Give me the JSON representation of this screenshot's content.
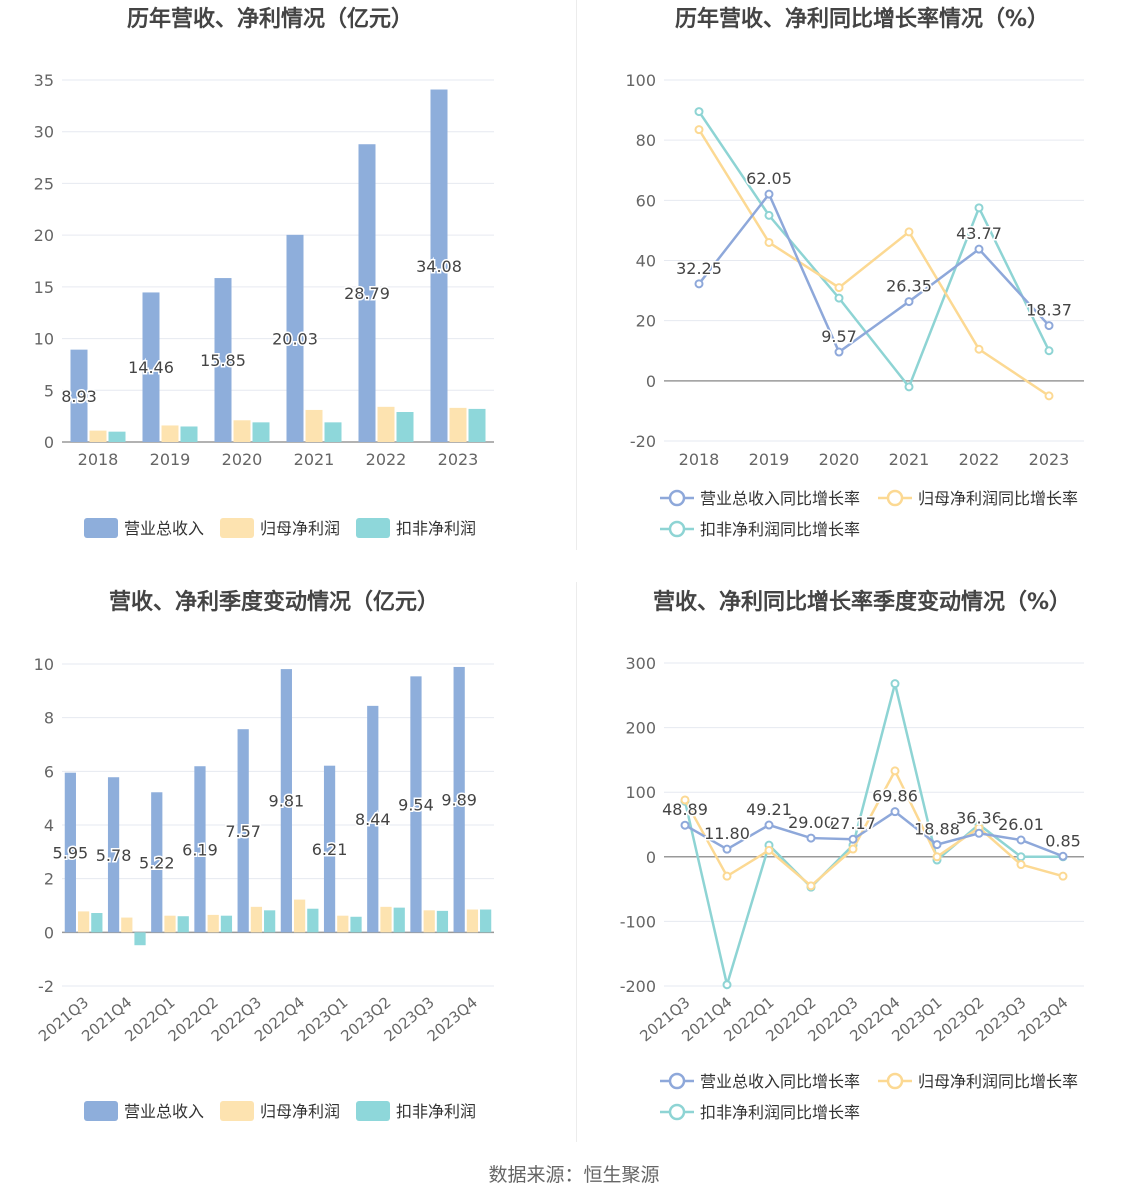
{
  "colors": {
    "revenue": "#8eaedb",
    "parent_profit": "#fde3b0",
    "deducted_profit": "#8ed7da",
    "rev_line": "#8ea8da",
    "parent_line": "#fcd993",
    "deducted_line": "#8ed4d4",
    "grid": "#e6e9f0",
    "axis": "#999999",
    "title": "#444444",
    "label": "#444444"
  },
  "source_text": "数据来源：恒生聚源",
  "chart_data": [
    {
      "type": "bar",
      "title": "历年营收、净利情况（亿元）",
      "categories": [
        "2018",
        "2019",
        "2020",
        "2021",
        "2022",
        "2023"
      ],
      "ylim": [
        0,
        35
      ],
      "yticks": [
        0,
        5,
        10,
        15,
        20,
        25,
        30,
        35
      ],
      "series": [
        {
          "name": "营业总收入",
          "values": [
            8.93,
            14.46,
            15.85,
            20.03,
            28.79,
            34.08
          ],
          "labels": [
            "8.93",
            "14.46",
            "15.85",
            "20.03",
            "28.79",
            "34.08"
          ]
        },
        {
          "name": "归母净利润",
          "values": [
            1.1,
            1.6,
            2.1,
            3.1,
            3.4,
            3.3
          ]
        },
        {
          "name": "扣非净利润",
          "values": [
            1.0,
            1.5,
            1.9,
            1.9,
            2.9,
            3.2
          ]
        }
      ]
    },
    {
      "type": "line",
      "title": "历年营收、净利同比增长率情况（%）",
      "categories": [
        "2018",
        "2019",
        "2020",
        "2021",
        "2022",
        "2023"
      ],
      "ylim": [
        -20,
        100
      ],
      "yticks": [
        -20,
        0,
        20,
        40,
        60,
        80,
        100
      ],
      "series": [
        {
          "name": "营业总收入同比增长率",
          "values": [
            32.25,
            62.05,
            9.57,
            26.35,
            43.77,
            18.37
          ],
          "labels": [
            "32.25",
            "62.05",
            "9.57",
            "26.35",
            "43.77",
            "18.37"
          ]
        },
        {
          "name": "归母净利润同比增长率",
          "values": [
            83.5,
            46,
            31,
            49.5,
            10.5,
            -5
          ]
        },
        {
          "name": "扣非净利润同比增长率",
          "values": [
            89.5,
            55,
            27.5,
            -2,
            57.5,
            10
          ]
        }
      ]
    },
    {
      "type": "bar",
      "title": "营收、净利季度变动情况（亿元）",
      "categories": [
        "2021Q3",
        "2021Q4",
        "2022Q1",
        "2022Q2",
        "2022Q3",
        "2022Q4",
        "2023Q1",
        "2023Q2",
        "2023Q3",
        "2023Q4"
      ],
      "ylim": [
        -2,
        10
      ],
      "yticks": [
        -2,
        0,
        2,
        4,
        6,
        8,
        10
      ],
      "series": [
        {
          "name": "营业总收入",
          "values": [
            5.95,
            5.78,
            5.22,
            6.19,
            7.57,
            9.81,
            6.21,
            8.44,
            9.54,
            9.89
          ],
          "labels": [
            "5.95",
            "5.78",
            "5.22",
            "6.19",
            "7.57",
            "9.81",
            "6.21",
            "8.44",
            "9.54",
            "9.89"
          ]
        },
        {
          "name": "归母净利润",
          "values": [
            0.78,
            0.55,
            0.62,
            0.65,
            0.95,
            1.22,
            0.62,
            0.95,
            0.82,
            0.85
          ]
        },
        {
          "name": "扣非净利润",
          "values": [
            0.72,
            -0.48,
            0.6,
            0.62,
            0.82,
            0.88,
            0.58,
            0.92,
            0.8,
            0.85
          ]
        }
      ]
    },
    {
      "type": "line",
      "title": "营收、净利同比增长率季度变动情况（%）",
      "categories": [
        "2021Q3",
        "2021Q4",
        "2022Q1",
        "2022Q2",
        "2022Q3",
        "2022Q4",
        "2023Q1",
        "2023Q2",
        "2023Q3",
        "2023Q4"
      ],
      "ylim": [
        -200,
        300
      ],
      "yticks": [
        -200,
        -100,
        0,
        100,
        200,
        300
      ],
      "series": [
        {
          "name": "营业总收入同比增长率",
          "values": [
            48.89,
            11.8,
            49.21,
            29.0,
            27.17,
            69.86,
            18.88,
            36.36,
            26.01,
            0.85
          ],
          "labels": [
            "48.89",
            "11.80",
            "49.21",
            "29.00",
            "27.17",
            "69.86",
            "18.88",
            "36.36",
            "26.01",
            "0.85"
          ]
        },
        {
          "name": "归母净利润同比增长率",
          "values": [
            88,
            -30,
            10,
            -45,
            12,
            133,
            0,
            45,
            -12,
            -30
          ]
        },
        {
          "name": "扣非净利润同比增长率",
          "values": [
            86,
            -198,
            18,
            -47,
            18,
            268,
            -5,
            50,
            0,
            0
          ]
        }
      ]
    }
  ]
}
